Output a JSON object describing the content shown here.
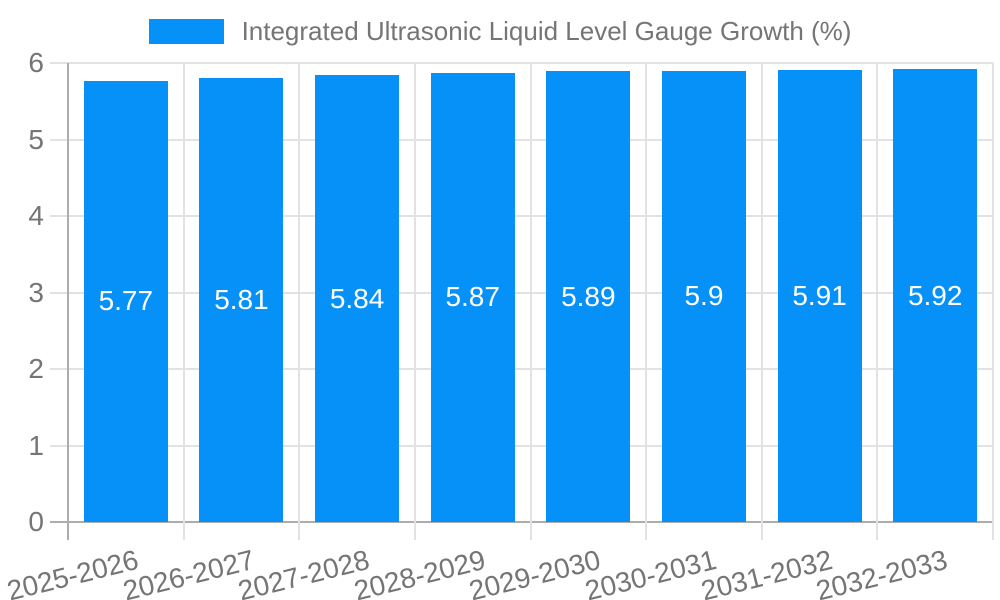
{
  "chart_data": {
    "type": "bar",
    "title": "Integrated Ultrasonic Liquid Level Gauge Growth (%)",
    "categories": [
      "2025-2026",
      "2026-2027",
      "2027-2028",
      "2028-2029",
      "2029-2030",
      "2030-2031",
      "2031-2032",
      "2032-2033"
    ],
    "series": [
      {
        "name": "Integrated Ultrasonic Liquid Level Gauge Growth (%)",
        "values": [
          5.77,
          5.81,
          5.84,
          5.87,
          5.89,
          5.9,
          5.91,
          5.92
        ]
      }
    ],
    "value_labels": [
      "5.77",
      "5.81",
      "5.84",
      "5.87",
      "5.89",
      "5.9",
      "5.91",
      "5.92"
    ],
    "xlabel": "",
    "ylabel": "",
    "ylim": [
      0,
      6
    ],
    "yticks": [
      0,
      1,
      2,
      3,
      4,
      5,
      6
    ],
    "grid": true,
    "legend_position": "top",
    "colors": {
      "bar": "#0591f8",
      "value_label": "#ffffff",
      "axis_text": "#757575",
      "legend_text": "#757575",
      "gridline": "#e2e2e2",
      "axis_line": "#adadad",
      "background": "#ffffff"
    }
  }
}
